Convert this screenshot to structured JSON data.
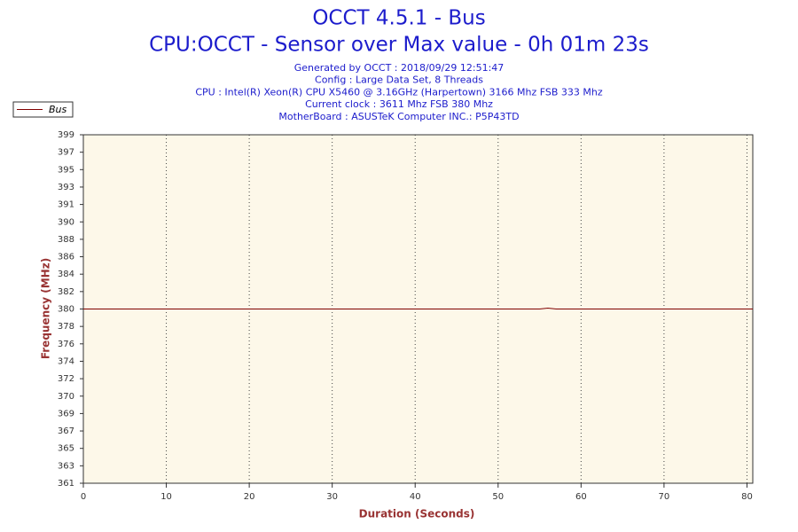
{
  "chart_data": {
    "type": "line",
    "title": "OCCT 4.5.1 - Bus",
    "subtitle": "CPU:OCCT - Sensor over Max value - 0h 01m 23s",
    "info": [
      "Generated by OCCT : 2018/09/29 12:51:47",
      "Config : Large Data Set, 8 Threads",
      "CPU : Intel(R) Xeon(R) CPU X5460 @ 3.16GHz (Harpertown) 3166 Mhz FSB 333 Mhz",
      "Current clock : 3611 Mhz FSB 380 Mhz",
      "MotherBoard : ASUSTeK Computer INC.: P5P43TD"
    ],
    "x_label": "Duration (Seconds)",
    "y_label": "Frequency (MHz)",
    "x": [
      0,
      55,
      56,
      57,
      80.7
    ],
    "series": [
      {
        "name": "Bus",
        "color": "#800000",
        "values": [
          380,
          380,
          380.1,
          380,
          380
        ]
      }
    ],
    "xlim": [
      0,
      80.7
    ],
    "xticks": [
      0,
      10,
      20,
      30,
      40,
      50,
      60,
      70,
      80
    ],
    "ylim": [
      361,
      399
    ],
    "yticks": [
      361,
      {
        "value": 362.9,
        "label": "363"
      },
      {
        "value": 364.8,
        "label": "365"
      },
      {
        "value": 366.7,
        "label": "367"
      },
      {
        "value": 368.6,
        "label": "369"
      },
      {
        "value": 370.5,
        "label": "370"
      },
      {
        "value": 372.4,
        "label": "372"
      },
      {
        "value": 374.3,
        "label": "374"
      },
      {
        "value": 376.2,
        "label": "376"
      },
      {
        "value": 378.1,
        "label": "378"
      },
      380,
      {
        "value": 381.9,
        "label": "382"
      },
      {
        "value": 383.8,
        "label": "384"
      },
      {
        "value": 385.7,
        "label": "386"
      },
      {
        "value": 387.6,
        "label": "388"
      },
      {
        "value": 389.5,
        "label": "390"
      },
      {
        "value": 391.4,
        "label": "391"
      },
      {
        "value": 393.3,
        "label": "393"
      },
      {
        "value": 395.2,
        "label": "395"
      },
      {
        "value": 397.1,
        "label": "397"
      },
      399
    ],
    "grid": true,
    "legend": "top-left",
    "background": "#fdf8e9"
  }
}
